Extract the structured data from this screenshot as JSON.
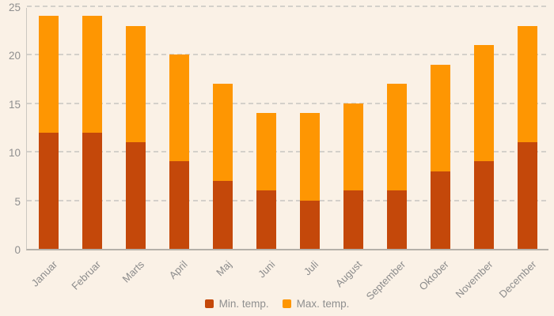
{
  "chart_data": {
    "type": "bar",
    "stacked": true,
    "categories": [
      "Januar",
      "Februar",
      "Marts",
      "April",
      "Maj",
      "Juni",
      "Juli",
      "August",
      "September",
      "Oktober",
      "November",
      "December"
    ],
    "series": [
      {
        "name": "Min. temp.",
        "color": "#c4480a",
        "values": [
          12,
          12,
          11,
          9,
          7,
          6,
          5,
          6,
          6,
          8,
          9,
          11
        ]
      },
      {
        "name": "Max. temp.",
        "color": "#fe9602",
        "values": [
          12,
          12,
          12,
          11,
          10,
          8,
          9,
          9,
          11,
          11,
          12,
          12
        ]
      }
    ],
    "stack_totals": [
      24,
      24,
      23,
      20,
      17,
      14,
      14,
      15,
      17,
      19,
      21,
      23
    ],
    "ylim": [
      0,
      25
    ],
    "yticks": [
      0,
      5,
      10,
      15,
      20,
      25
    ],
    "grid": "horizontal-dashed",
    "legend_position": "bottom-center",
    "background_color": "#faf1e6",
    "text_color": "#8f8f8f",
    "gridline_color": "#d4d0ca",
    "axis_line_color": "#b5b0a9"
  }
}
